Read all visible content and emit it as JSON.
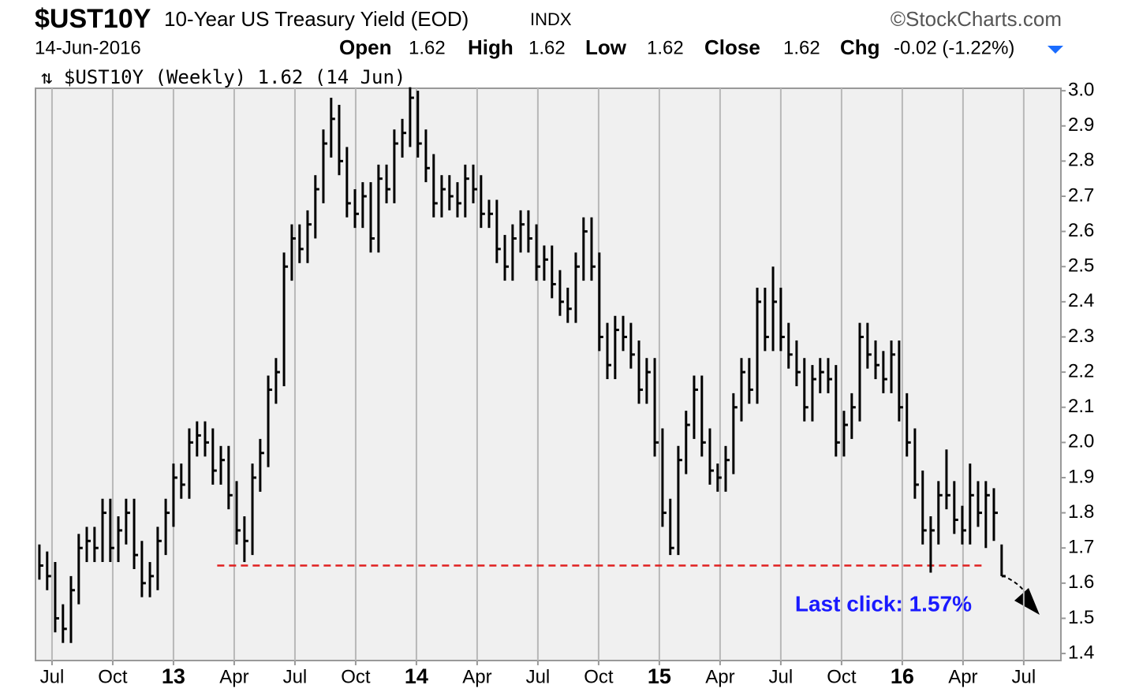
{
  "header": {
    "symbol": "$UST10Y",
    "name": "10-Year US Treasury Yield (EOD)",
    "exchange": "INDX",
    "brand": "©StockCharts.com",
    "date": "14-Jun-2016",
    "quote": [
      {
        "label": "Open",
        "value": "1.62"
      },
      {
        "label": "High",
        "value": "1.62"
      },
      {
        "label": "Low",
        "value": "1.62"
      },
      {
        "label": "Close",
        "value": "1.62"
      },
      {
        "label": "Chg",
        "value": "-0.02 (-1.22%)"
      }
    ]
  },
  "chart_data": {
    "type": "hlc",
    "color": "#000000",
    "grid": true,
    "xlim": [
      2012.432,
      2016.653
    ],
    "ylim": [
      1.38,
      3.007
    ],
    "xticks": [
      {
        "value": 2012.5,
        "label": "Jul"
      },
      {
        "value": 2012.75,
        "label": "Oct"
      },
      {
        "value": 2013,
        "label": "13"
      },
      {
        "value": 2013.25,
        "label": "Apr"
      },
      {
        "value": 2013.5,
        "label": "Jul"
      },
      {
        "value": 2013.75,
        "label": "Oct"
      },
      {
        "value": 2014,
        "label": "14"
      },
      {
        "value": 2014.25,
        "label": "Apr"
      },
      {
        "value": 2014.5,
        "label": "Jul"
      },
      {
        "value": 2014.75,
        "label": "Oct"
      },
      {
        "value": 2015,
        "label": "15"
      },
      {
        "value": 2015.25,
        "label": "Apr"
      },
      {
        "value": 2015.5,
        "label": "Jul"
      },
      {
        "value": 2015.75,
        "label": "Oct"
      },
      {
        "value": 2016,
        "label": "16"
      },
      {
        "value": 2016.25,
        "label": "Apr"
      },
      {
        "value": 2016.5,
        "label": "Jul"
      }
    ],
    "yticks": [
      1.4,
      1.5,
      1.6,
      1.7,
      1.8,
      1.9,
      {
        "value": 2,
        "label": "2.0"
      },
      2.1,
      2.2,
      2.3,
      2.4,
      2.5,
      2.6,
      2.7,
      2.8,
      2.9,
      {
        "value": 3,
        "label": "3.0"
      }
    ],
    "series": [
      {
        "name": "$UST10Y (Weekly) 1.62 (14 Jun)",
        "x": [
          2012.448,
          2012.48,
          2012.513,
          2012.545,
          2012.578,
          2012.61,
          2012.643,
          2012.675,
          2012.708,
          2012.74,
          2012.773,
          2012.805,
          2012.838,
          2012.87,
          2012.903,
          2012.935,
          2012.968,
          2013.0,
          2013.032,
          2013.065,
          2013.097,
          2013.13,
          2013.162,
          2013.195,
          2013.227,
          2013.26,
          2013.292,
          2013.325,
          2013.357,
          2013.39,
          2013.422,
          2013.455,
          2013.487,
          2013.519,
          2013.552,
          2013.584,
          2013.617,
          2013.649,
          2013.682,
          2013.714,
          2013.747,
          2013.779,
          2013.812,
          2013.844,
          2013.877,
          2013.909,
          2013.942,
          2013.974,
          2014.006,
          2014.039,
          2014.071,
          2014.104,
          2014.136,
          2014.169,
          2014.201,
          2014.234,
          2014.266,
          2014.299,
          2014.331,
          2014.364,
          2014.396,
          2014.429,
          2014.461,
          2014.494,
          2014.526,
          2014.558,
          2014.591,
          2014.623,
          2014.656,
          2014.688,
          2014.721,
          2014.753,
          2014.786,
          2014.818,
          2014.851,
          2014.883,
          2014.916,
          2014.948,
          2014.981,
          2015.013,
          2015.045,
          2015.078,
          2015.11,
          2015.143,
          2015.175,
          2015.208,
          2015.24,
          2015.273,
          2015.305,
          2015.338,
          2015.37,
          2015.403,
          2015.435,
          2015.468,
          2015.5,
          2015.532,
          2015.565,
          2015.597,
          2015.63,
          2015.662,
          2015.695,
          2015.727,
          2015.76,
          2015.792,
          2015.825,
          2015.857,
          2015.89,
          2015.922,
          2015.955,
          2015.987,
          2016.019,
          2016.052,
          2016.084,
          2016.117,
          2016.149,
          2016.182,
          2016.214,
          2016.247,
          2016.279,
          2016.312,
          2016.344,
          2016.377,
          2016.409
        ],
        "high": [
          1.71,
          1.69,
          1.66,
          1.54,
          1.62,
          1.74,
          1.76,
          1.76,
          1.84,
          1.84,
          1.79,
          1.84,
          1.84,
          1.72,
          1.66,
          1.76,
          1.84,
          1.94,
          1.94,
          2.04,
          2.06,
          2.06,
          2.04,
          1.99,
          1.99,
          1.89,
          1.79,
          1.94,
          2.01,
          2.19,
          2.24,
          2.54,
          2.62,
          2.62,
          2.66,
          2.76,
          2.89,
          2.98,
          2.96,
          2.84,
          2.72,
          2.74,
          2.74,
          2.79,
          2.79,
          2.89,
          2.92,
          3.01,
          3.0,
          2.89,
          2.82,
          2.76,
          2.76,
          2.74,
          2.79,
          2.79,
          2.76,
          2.69,
          2.69,
          2.59,
          2.62,
          2.66,
          2.66,
          2.62,
          2.56,
          2.56,
          2.49,
          2.44,
          2.54,
          2.64,
          2.64,
          2.54,
          2.34,
          2.36,
          2.36,
          2.34,
          2.29,
          2.24,
          2.24,
          2.04,
          1.84,
          1.99,
          2.09,
          2.19,
          2.19,
          2.04,
          1.94,
          1.99,
          2.14,
          2.24,
          2.24,
          2.44,
          2.44,
          2.5,
          2.44,
          2.34,
          2.29,
          2.24,
          2.22,
          2.24,
          2.24,
          2.22,
          2.09,
          2.14,
          2.34,
          2.34,
          2.29,
          2.26,
          2.29,
          2.29,
          2.14,
          2.04,
          1.92,
          1.79,
          1.89,
          1.98,
          1.89,
          1.82,
          1.94,
          1.89,
          1.89,
          1.87,
          1.71
        ],
        "low": [
          1.61,
          1.58,
          1.46,
          1.43,
          1.43,
          1.54,
          1.66,
          1.66,
          1.66,
          1.66,
          1.66,
          1.71,
          1.64,
          1.56,
          1.56,
          1.58,
          1.68,
          1.76,
          1.84,
          1.84,
          1.96,
          1.96,
          1.88,
          1.88,
          1.81,
          1.71,
          1.66,
          1.68,
          1.86,
          1.93,
          2.11,
          2.16,
          2.46,
          2.51,
          2.51,
          2.58,
          2.68,
          2.81,
          2.76,
          2.64,
          2.61,
          2.61,
          2.54,
          2.54,
          2.68,
          2.68,
          2.81,
          2.84,
          2.81,
          2.74,
          2.64,
          2.64,
          2.66,
          2.64,
          2.64,
          2.68,
          2.61,
          2.61,
          2.51,
          2.46,
          2.46,
          2.54,
          2.54,
          2.46,
          2.46,
          2.41,
          2.36,
          2.34,
          2.34,
          2.46,
          2.46,
          2.26,
          2.18,
          2.18,
          2.26,
          2.21,
          2.11,
          2.11,
          1.96,
          1.76,
          1.68,
          1.68,
          1.91,
          2.01,
          1.96,
          1.88,
          1.86,
          1.86,
          1.91,
          2.06,
          2.11,
          2.11,
          2.26,
          2.26,
          2.26,
          2.21,
          2.16,
          2.06,
          2.06,
          2.14,
          2.14,
          1.96,
          1.96,
          2.01,
          2.06,
          2.21,
          2.18,
          2.14,
          2.14,
          2.06,
          1.96,
          1.84,
          1.71,
          1.63,
          1.71,
          1.81,
          1.74,
          1.71,
          1.71,
          1.76,
          1.7,
          1.72,
          1.62
        ],
        "close": [
          1.65,
          1.62,
          1.5,
          1.47,
          1.58,
          1.7,
          1.72,
          1.7,
          1.8,
          1.7,
          1.75,
          1.8,
          1.68,
          1.6,
          1.62,
          1.72,
          1.8,
          1.9,
          1.88,
          2.0,
          2.02,
          2.0,
          1.92,
          1.95,
          1.85,
          1.75,
          1.72,
          1.9,
          1.97,
          2.15,
          2.2,
          2.5,
          2.58,
          2.55,
          2.62,
          2.72,
          2.85,
          2.92,
          2.8,
          2.68,
          2.65,
          2.7,
          2.58,
          2.75,
          2.72,
          2.85,
          2.88,
          2.98,
          2.85,
          2.78,
          2.68,
          2.72,
          2.7,
          2.68,
          2.75,
          2.72,
          2.65,
          2.65,
          2.55,
          2.5,
          2.58,
          2.62,
          2.58,
          2.5,
          2.52,
          2.45,
          2.4,
          2.38,
          2.5,
          2.6,
          2.5,
          2.3,
          2.22,
          2.32,
          2.3,
          2.25,
          2.15,
          2.2,
          2.0,
          1.8,
          1.7,
          1.95,
          2.05,
          2.15,
          2.0,
          1.92,
          1.9,
          1.95,
          2.1,
          2.2,
          2.15,
          2.4,
          2.3,
          2.4,
          2.3,
          2.25,
          2.2,
          2.1,
          2.18,
          2.2,
          2.18,
          2.0,
          2.05,
          2.1,
          2.3,
          2.25,
          2.22,
          2.18,
          2.25,
          2.1,
          2.0,
          1.88,
          1.75,
          1.75,
          1.85,
          1.85,
          1.78,
          1.75,
          1.85,
          1.8,
          1.85,
          1.8,
          1.62
        ]
      }
    ],
    "support_line": {
      "value": 1.65,
      "x": [
        2013.18,
        2016.33
      ],
      "color": "#e02020"
    },
    "annotation": {
      "text": "Last click: 1.57%",
      "color": "#1a1aff"
    }
  }
}
